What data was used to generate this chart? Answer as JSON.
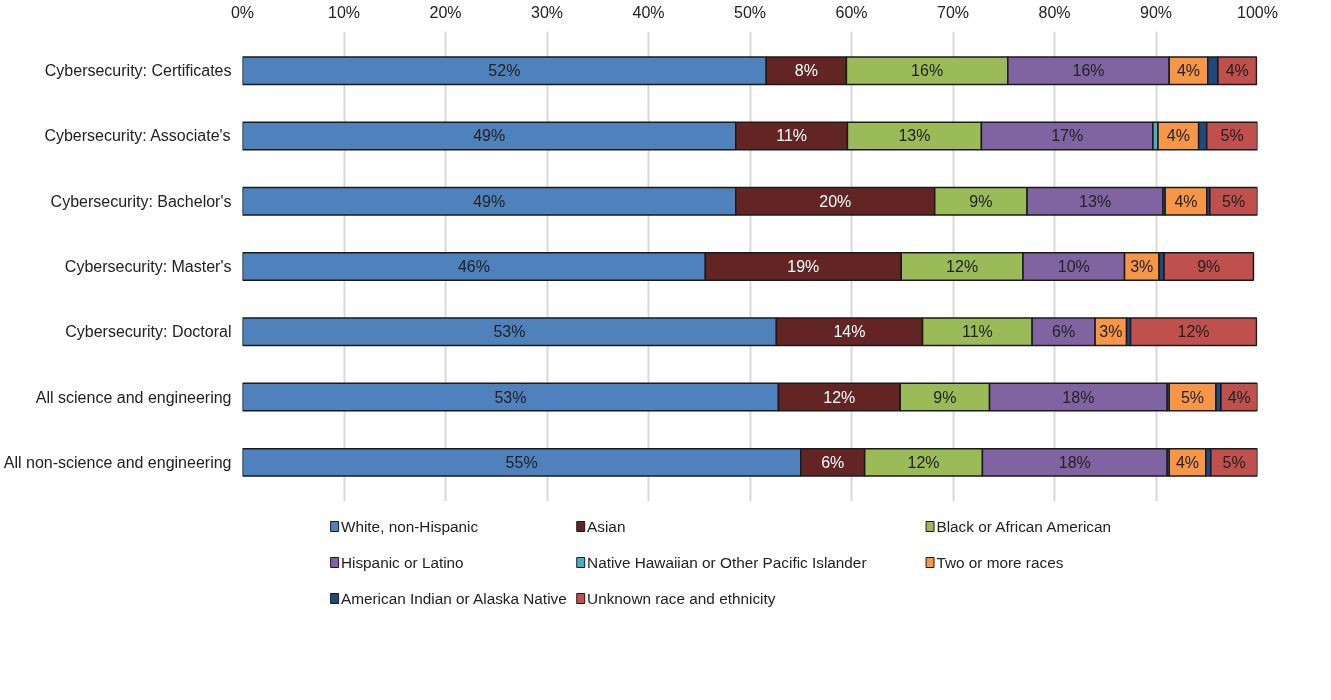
{
  "chart_data": {
    "type": "bar",
    "orientation": "horizontal",
    "stacked": true,
    "categories": [
      "Cybersecurity: Certificates",
      "Cybersecurity: Associate's",
      "Cybersecurity: Bachelor's",
      "Cybersecurity: Master's",
      "Cybersecurity: Doctoral",
      "All science and engineering",
      "All non-science and engineering"
    ],
    "xlim": [
      0,
      100
    ],
    "xticks": [
      {
        "value": 0,
        "label": "0%"
      },
      {
        "value": 10,
        "label": "10%"
      },
      {
        "value": 20,
        "label": "20%"
      },
      {
        "value": 30,
        "label": "30%"
      },
      {
        "value": 40,
        "label": "40%"
      },
      {
        "value": 50,
        "label": "50%"
      },
      {
        "value": 60,
        "label": "60%"
      },
      {
        "value": 70,
        "label": "70%"
      },
      {
        "value": 80,
        "label": "80%"
      },
      {
        "value": 90,
        "label": "90%"
      },
      {
        "value": 100,
        "label": "100%"
      }
    ],
    "grid": "x",
    "legend": "bottom",
    "series": [
      {
        "name": "White, non-Hispanic",
        "color": "#4f81bd",
        "values": [
          51.6,
          48.6,
          48.6,
          45.6,
          52.6,
          52.8,
          55.0
        ],
        "value_labels": [
          "52%",
          "49%",
          "49%",
          "46%",
          "53%",
          "53%",
          "55%"
        ]
      },
      {
        "name": "Asian",
        "color": "#632523",
        "values": [
          7.9,
          11.0,
          19.6,
          19.3,
          14.4,
          12.0,
          6.3
        ],
        "value_labels": [
          "8%",
          "11%",
          "20%",
          "19%",
          "14%",
          "12%",
          "6%"
        ]
      },
      {
        "name": "Black or African American",
        "color": "#9bbb59",
        "values": [
          15.9,
          13.2,
          9.1,
          12.0,
          10.8,
          8.8,
          11.6
        ],
        "value_labels": [
          "16%",
          "13%",
          "9%",
          "12%",
          "11%",
          "9%",
          "12%"
        ]
      },
      {
        "name": "Hispanic or Latino",
        "color": "#8064a2",
        "values": [
          15.9,
          16.9,
          13.4,
          10.0,
          6.2,
          17.5,
          18.2
        ],
        "value_labels": [
          "16%",
          "17%",
          "13%",
          "10%",
          "6%",
          "18%",
          "18%"
        ]
      },
      {
        "name": "Native Hawaiian or Other Pacific Islander",
        "color": "#4bacc6",
        "values": [
          null,
          0.5,
          0.2,
          null,
          null,
          0.2,
          0.2
        ],
        "value_labels": [
          null,
          null,
          null,
          null,
          null,
          null,
          null
        ]
      },
      {
        "name": "Two or more races",
        "color": "#f79646",
        "values": [
          3.8,
          4.0,
          4.1,
          3.4,
          3.1,
          4.6,
          3.6
        ],
        "value_labels": [
          "4%",
          "4%",
          "4%",
          "3%",
          "3%",
          "5%",
          "4%"
        ]
      },
      {
        "name": "American Indian or Alaska Native",
        "color": "#1f497d",
        "values": [
          1.0,
          0.8,
          0.3,
          0.5,
          0.4,
          0.5,
          0.5
        ],
        "value_labels": [
          null,
          null,
          null,
          null,
          null,
          null,
          null
        ]
      },
      {
        "name": "Unknown race and ethnicity",
        "color": "#c0504d",
        "values": [
          3.8,
          5.0,
          4.7,
          8.8,
          12.4,
          3.6,
          4.6
        ],
        "value_labels": [
          "4%",
          "5%",
          "5%",
          "9%",
          "12%",
          "4%",
          "5%"
        ]
      }
    ]
  }
}
